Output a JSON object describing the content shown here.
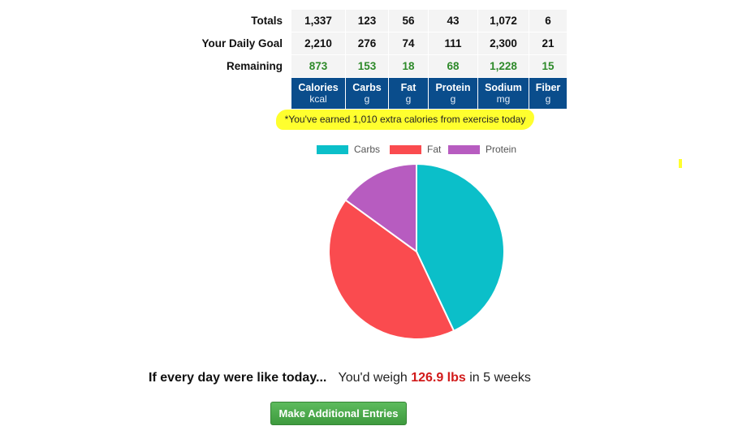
{
  "table": {
    "rows": [
      {
        "label": "Totals",
        "values": [
          "1,337",
          "123",
          "56",
          "43",
          "1,072",
          "6"
        ]
      },
      {
        "label": "Your Daily Goal",
        "values": [
          "2,210",
          "276",
          "74",
          "111",
          "2,300",
          "21"
        ]
      },
      {
        "label": "Remaining",
        "values": [
          "873",
          "153",
          "18",
          "68",
          "1,228",
          "15"
        ]
      }
    ],
    "columns": [
      {
        "name": "Calories",
        "unit": "kcal"
      },
      {
        "name": "Carbs",
        "unit": "g"
      },
      {
        "name": "Fat",
        "unit": "g"
      },
      {
        "name": "Protein",
        "unit": "g"
      },
      {
        "name": "Sodium",
        "unit": "mg"
      },
      {
        "name": "Fiber",
        "unit": "g"
      }
    ]
  },
  "exercise_note": "*You've earned 1,010 extra calories from exercise today",
  "chart_data": {
    "type": "pie",
    "title": "",
    "legend_position": "top",
    "labels": [
      "Carbs",
      "Fat",
      "Protein"
    ],
    "values": [
      43,
      42,
      15
    ],
    "colors": [
      "#0bbfc9",
      "#fa4b4f",
      "#b75cc0"
    ]
  },
  "projection": {
    "lead": "If every day were like today...",
    "prefix": "You'd weigh",
    "weight": "126.9 lbs",
    "suffix": "in 5 weeks"
  },
  "actions": {
    "make_entries_label": "Make Additional Entries"
  },
  "colors": {
    "header_bg": "#0a4d8c",
    "remaining_text": "#2e8a2a",
    "weight_text": "#d11a1a",
    "button": "#4cad4c"
  }
}
